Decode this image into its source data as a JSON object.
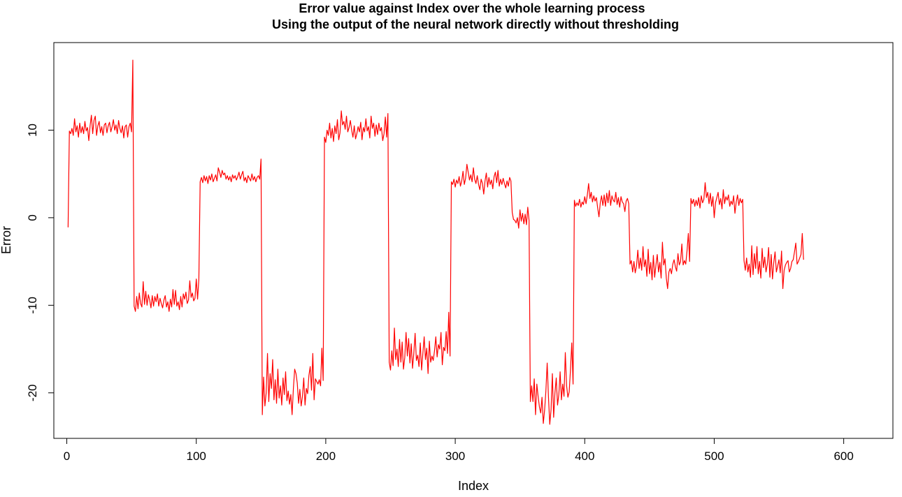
{
  "chart_data": {
    "type": "line",
    "title": "Error value against Index over the whole learning process",
    "subtitle": "Using the output of the neural network directly without thresholding",
    "xlabel": "Index",
    "ylabel": "Error",
    "xlim": [
      -10,
      638
    ],
    "ylim": [
      -25.2,
      20.0
    ],
    "x_ticks": [
      0,
      100,
      200,
      300,
      400,
      500,
      600
    ],
    "x_tick_labels": [
      "0",
      "100",
      "200",
      "300",
      "400",
      "500",
      "600"
    ],
    "y_ticks": [
      -20,
      -10,
      0,
      10
    ],
    "y_tick_labels": [
      "-20",
      "-10",
      "0",
      "10"
    ],
    "grid": false,
    "legend": "none",
    "colors": {
      "line": "#ff0000",
      "axis": "#000000",
      "background": "#ffffff"
    },
    "series": [
      {
        "color": "#ff0000",
        "x_start": 1,
        "x_step": 1,
        "values": [
          -1.1,
          9.9,
          9.6,
          10.2,
          9.4,
          11.3,
          9.8,
          10.5,
          9.2,
          10.8,
          9.7,
          10.4,
          9.6,
          11.0,
          9.9,
          10.3,
          8.8,
          10.5,
          11.7,
          9.6,
          11.1,
          11.6,
          9.4,
          10.5,
          11.0,
          9.7,
          10.4,
          9.4,
          10.6,
          10.8,
          9.7,
          10.5,
          10.9,
          9.8,
          10.4,
          11.2,
          10.0,
          10.6,
          9.6,
          11.1,
          10.2,
          9.7,
          10.5,
          9.1,
          10.4,
          10.6,
          9.2,
          10.4,
          10.8,
          9.8,
          18.0,
          -10.1,
          -10.7,
          -9.0,
          -10.4,
          -8.6,
          -9.8,
          -10.2,
          -7.3,
          -9.9,
          -8.4,
          -10.0,
          -8.8,
          -9.4,
          -10.3,
          -8.9,
          -10.1,
          -9.0,
          -9.6,
          -8.7,
          -10.1,
          -9.2,
          -9.8,
          -10.3,
          -9.4,
          -8.9,
          -10.2,
          -9.6,
          -10.7,
          -9.3,
          -10.2,
          -8.2,
          -9.9,
          -8.3,
          -10.1,
          -9.6,
          -10.5,
          -9.0,
          -10.2,
          -8.7,
          -9.3,
          -8.5,
          -9.8,
          -9.4,
          -7.2,
          -9.1,
          -8.6,
          -9.5,
          -9.2,
          -7.0,
          -9.3,
          -7.0,
          4.1,
          4.6,
          4.0,
          4.8,
          4.2,
          4.7,
          3.9,
          4.8,
          4.3,
          5.0,
          4.1,
          4.5,
          4.9,
          4.2,
          5.7,
          5.2,
          4.6,
          5.4,
          4.9,
          5.1,
          4.4,
          4.8,
          4.3,
          4.7,
          4.1,
          4.9,
          4.5,
          4.8,
          4.3,
          4.7,
          5.2,
          4.4,
          4.9,
          5.3,
          4.2,
          4.6,
          4.0,
          4.8,
          4.5,
          4.2,
          5.0,
          4.3,
          4.7,
          4.1,
          4.6,
          4.8,
          4.4,
          6.7,
          -22.5,
          -18.2,
          -21.5,
          -20.0,
          -15.5,
          -21.0,
          -17.8,
          -19.5,
          -16.2,
          -20.8,
          -18.5,
          -21.2,
          -17.3,
          -20.6,
          -19.2,
          -21.4,
          -18.3,
          -20.2,
          -17.6,
          -20.9,
          -19.8,
          -21.3,
          -20.2,
          -22.5,
          -19.5,
          -17.3,
          -17.8,
          -18.9,
          -21.2,
          -19.6,
          -21.5,
          -20.4,
          -18.3,
          -21.4,
          -19.5,
          -20.1,
          -18.0,
          -17.0,
          -19.7,
          -15.5,
          -20.8,
          -18.4,
          -18.7,
          -19.0,
          -18.5,
          -19.2,
          -14.9,
          -18.6,
          9.2,
          8.6,
          10.0,
          9.4,
          10.8,
          9.1,
          10.2,
          8.7,
          10.5,
          9.6,
          11.2,
          8.9,
          9.7,
          12.2,
          10.6,
          11.0,
          10.1,
          11.6,
          9.8,
          10.3,
          11.1,
          10.0,
          9.2,
          10.5,
          9.0,
          9.6,
          10.4,
          9.8,
          10.9,
          8.9,
          10.3,
          9.8,
          11.3,
          9.9,
          10.4,
          9.1,
          11.6,
          10.2,
          10.8,
          9.3,
          10.6,
          9.5,
          10.8,
          9.9,
          10.3,
          8.8,
          9.6,
          11.5,
          9.2,
          11.9,
          -16.5,
          -17.4,
          -15.2,
          -16.9,
          -12.6,
          -16.2,
          -15.0,
          -17.0,
          -13.9,
          -16.5,
          -14.2,
          -17.3,
          -16.0,
          -13.1,
          -15.8,
          -13.8,
          -16.6,
          -14.4,
          -17.2,
          -15.5,
          -13.2,
          -16.3,
          -15.7,
          -17.0,
          -14.3,
          -17.4,
          -15.5,
          -13.6,
          -16.2,
          -14.9,
          -17.8,
          -14.1,
          -16.5,
          -15.8,
          -16.3,
          -15.2,
          -13.6,
          -15.9,
          -14.5,
          -15.0,
          -13.1,
          -16.8,
          -14.8,
          -15.2,
          -13.0,
          -15.5,
          -10.8,
          -15.8,
          4.1,
          3.8,
          4.4,
          3.5,
          4.3,
          3.9,
          4.7,
          3.6,
          4.2,
          5.3,
          3.8,
          4.5,
          6.1,
          5.2,
          4.3,
          4.9,
          4.1,
          5.7,
          4.4,
          3.9,
          4.8,
          3.8,
          3.2,
          4.4,
          3.9,
          2.7,
          4.2,
          5.1,
          3.5,
          4.6,
          3.8,
          4.3,
          3.3,
          4.7,
          5.2,
          4.0,
          5.4,
          3.6,
          4.4,
          3.8,
          4.5,
          3.9,
          3.4,
          4.2,
          3.6,
          4.6,
          4.2,
          0.6,
          -0.2,
          -0.3,
          -0.6,
          0.0,
          -1.2,
          0.9,
          -0.4,
          0.5,
          -0.7,
          0.4,
          -0.8,
          1.2,
          -0.3,
          -21.0,
          -19.2,
          -21.0,
          -18.4,
          -22.5,
          -19.0,
          -20.4,
          -21.6,
          -22.3,
          -20.5,
          -23.5,
          -22.0,
          -19.8,
          -16.6,
          -20.5,
          -23.6,
          -21.9,
          -17.8,
          -22.8,
          -20.0,
          -18.3,
          -21.4,
          -20.2,
          -17.6,
          -20.8,
          -19.0,
          -20.4,
          -15.4,
          -19.2,
          -20.5,
          -19.9,
          -17.3,
          -14.3,
          -19.0,
          2.0,
          1.3,
          1.7,
          1.4,
          2.1,
          1.2,
          1.8,
          1.5,
          2.4,
          1.6,
          2.6,
          3.9,
          2.2,
          2.9,
          1.8,
          2.5,
          1.9,
          2.3,
          1.1,
          0.1,
          1.7,
          2.5,
          1.4,
          2.6,
          1.3,
          2.8,
          1.7,
          3.1,
          1.4,
          2.5,
          2.0,
          1.8,
          2.9,
          1.5,
          2.3,
          1.2,
          2.4,
          1.8,
          1.6,
          0.7,
          1.9,
          2.2,
          1.6,
          -5.3,
          -4.9,
          -6.2,
          -5.0,
          -6.3,
          -5.5,
          -3.7,
          -5.8,
          -4.6,
          -6.0,
          -3.3,
          -5.6,
          -4.8,
          -6.7,
          -3.6,
          -6.4,
          -5.1,
          -7.1,
          -4.3,
          -6.8,
          -5.4,
          -4.2,
          -6.2,
          -5.1,
          -6.9,
          -2.8,
          -5.4,
          -4.7,
          -6.9,
          -8.1,
          -6.2,
          -5.8,
          -6.4,
          -5.3,
          -4.8,
          -5.6,
          -6.1,
          -4.1,
          -5.4,
          -5.0,
          -3.0,
          -5.4,
          -4.9,
          -5.3,
          -3.8,
          -1.8,
          -5.0,
          2.2,
          1.6,
          2.1,
          1.3,
          2.0,
          1.4,
          2.3,
          1.1,
          2.5,
          1.7,
          2.1,
          4.0,
          2.3,
          2.9,
          1.6,
          2.8,
          1.3,
          2.4,
          0.0,
          1.7,
          2.3,
          2.9,
          1.5,
          2.2,
          1.0,
          3.2,
          1.6,
          2.4,
          2.0,
          2.6,
          1.3,
          1.9,
          1.5,
          2.5,
          0.5,
          1.8,
          2.6,
          1.4,
          2.2,
          1.7,
          2.1,
          -4.9,
          -6.0,
          -4.6,
          -6.2,
          -5.3,
          -6.8,
          -3.2,
          -6.5,
          -4.1,
          -5.8,
          -3.3,
          -6.4,
          -5.0,
          -6.9,
          -3.5,
          -5.7,
          -4.5,
          -6.2,
          -5.3,
          -3.4,
          -6.8,
          -4.2,
          -7.0,
          -5.1,
          -3.9,
          -6.2,
          -5.5,
          -4.8,
          -6.3,
          -3.8,
          -8.1,
          -6.0,
          -5.4,
          -5.1,
          -4.9,
          -6.2,
          -5.8,
          -5.0,
          -4.8,
          -3.9,
          -2.9,
          -5.3,
          -5.0,
          -4.6,
          -4.2,
          -1.8,
          -4.8
        ]
      }
    ]
  }
}
